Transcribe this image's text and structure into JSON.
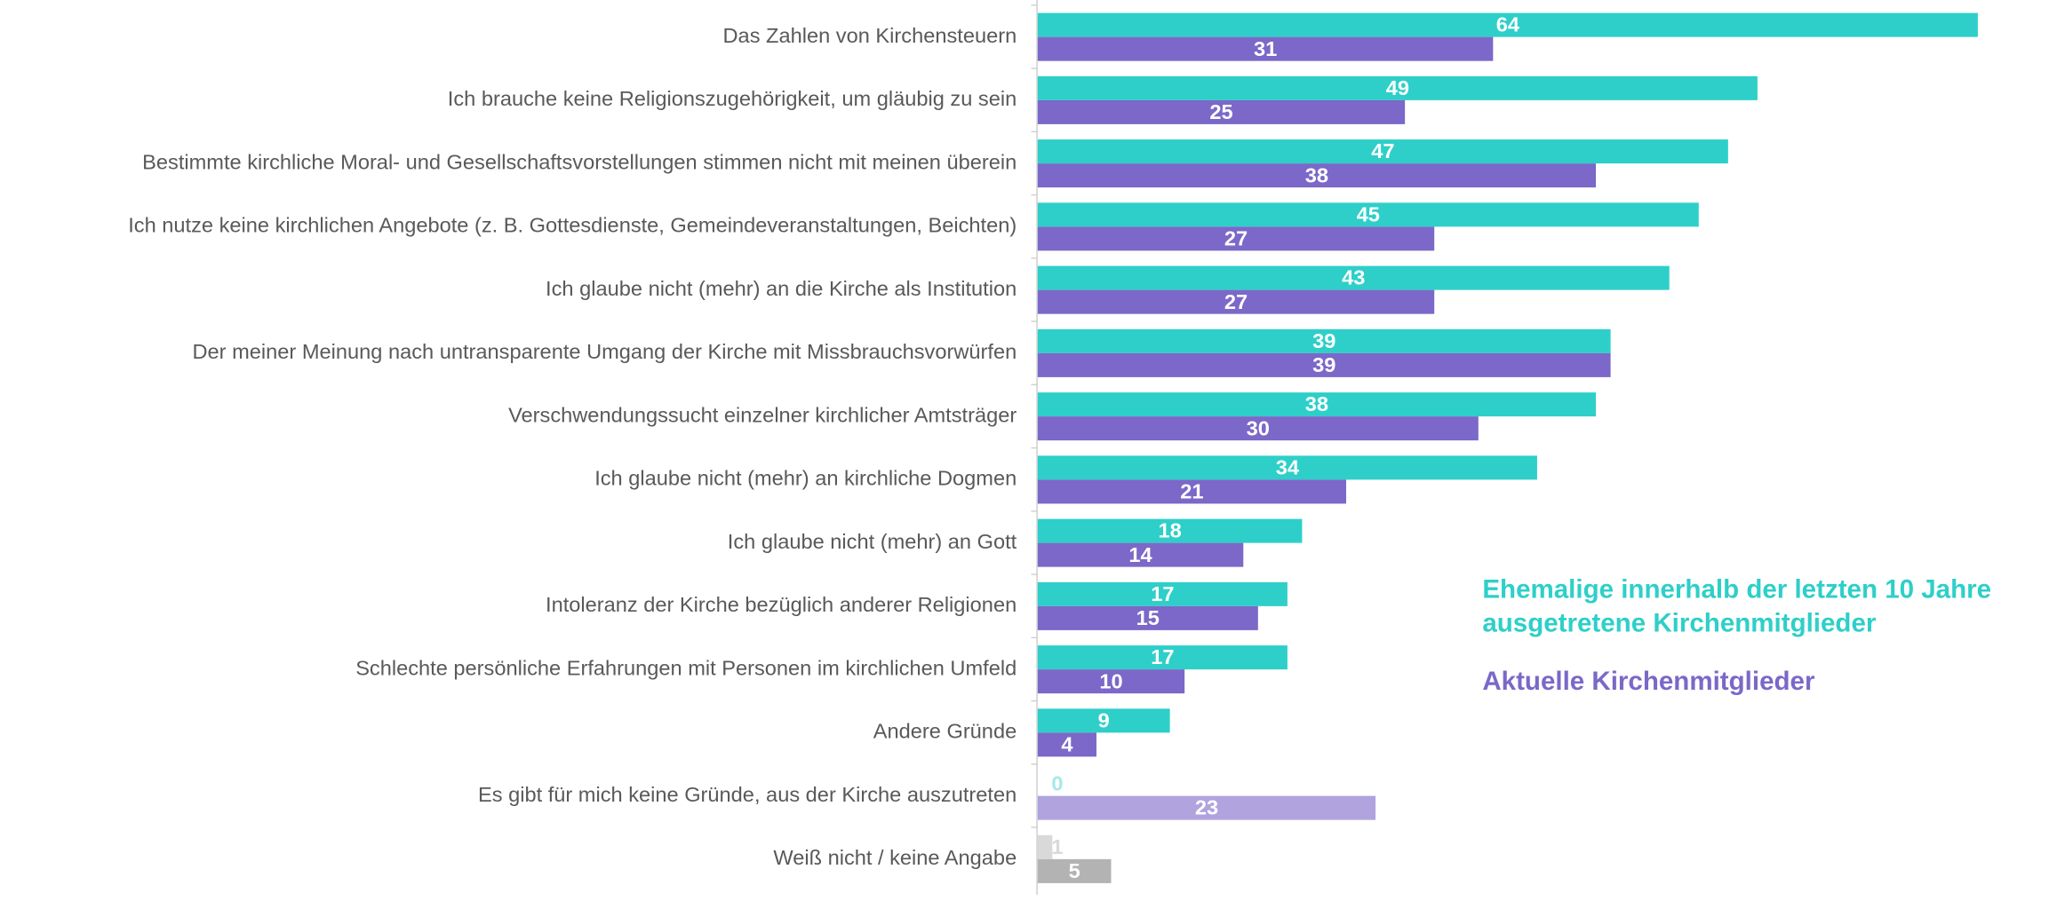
{
  "chart_data": {
    "type": "bar",
    "orientation": "horizontal",
    "categories": [
      "Das Zahlen von Kirchensteuern",
      "Ich brauche keine Religionszugehörigkeit, um gläubig zu sein",
      "Bestimmte kirchliche Moral- und Gesellschaftsvorstellungen stimmen nicht mit meinen überein",
      "Ich nutze keine kirchlichen Angebote (z. B. Gottesdienste, Gemeindeveranstaltungen, Beichten)",
      "Ich glaube nicht (mehr) an die Kirche als Institution",
      "Der meiner Meinung nach untransparente Umgang der Kirche mit Missbrauchsvorwürfen",
      "Verschwendungssucht einzelner kirchlicher Amtsträger",
      "Ich glaube nicht (mehr) an kirchliche Dogmen",
      "Ich glaube nicht (mehr) an Gott",
      "Intoleranz der Kirche bezüglich anderer Religionen",
      "Schlechte persönliche Erfahrungen mit Personen im kirchlichen Umfeld",
      "Andere Gründe",
      "Es gibt für mich keine Gründe, aus der Kirche auszutreten",
      "Weiß nicht / keine Angabe"
    ],
    "series": [
      {
        "name": "Ehemalige innerhalb der letzten 10 Jahre ausgetretene Kirchenmitglieder",
        "color": "#2ecfc9",
        "values": [
          64,
          49,
          47,
          45,
          43,
          39,
          38,
          34,
          18,
          17,
          17,
          9,
          0,
          1
        ],
        "colors": [
          "#2ecfc9",
          "#2ecfc9",
          "#2ecfc9",
          "#2ecfc9",
          "#2ecfc9",
          "#2ecfc9",
          "#2ecfc9",
          "#2ecfc9",
          "#2ecfc9",
          "#2ecfc9",
          "#2ecfc9",
          "#2ecfc9",
          "#a6e9e6",
          "#d9d9d9"
        ]
      },
      {
        "name": "Aktuelle Kirchenmitglieder",
        "color": "#7b68c8",
        "values": [
          31,
          25,
          38,
          27,
          27,
          39,
          30,
          21,
          14,
          15,
          10,
          4,
          23,
          5
        ],
        "colors": [
          "#7b68c8",
          "#7b68c8",
          "#7b68c8",
          "#7b68c8",
          "#7b68c8",
          "#7b68c8",
          "#7b68c8",
          "#7b68c8",
          "#7b68c8",
          "#7b68c8",
          "#7b68c8",
          "#7b68c8",
          "#b0a3de",
          "#b3b3b3"
        ]
      }
    ],
    "xlim": [
      0,
      69.3
    ]
  }
}
